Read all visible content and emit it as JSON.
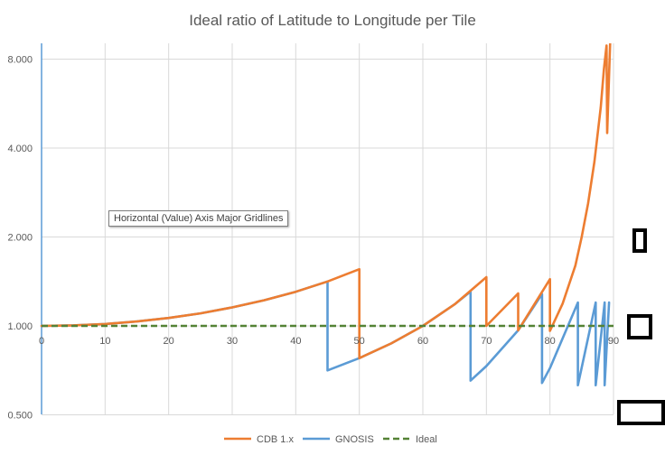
{
  "chart_data": {
    "type": "line",
    "title": "Ideal ratio of Latitude to Longitude per Tile",
    "xlabel": "",
    "ylabel": "",
    "y_scale": "log2",
    "xlim": [
      0,
      90
    ],
    "ylim": [
      0.5,
      8
    ],
    "x_ticks": [
      0,
      10,
      20,
      30,
      40,
      50,
      60,
      70,
      80,
      90
    ],
    "y_ticks": [
      0.5,
      1,
      2,
      4,
      8
    ],
    "y_tick_labels": [
      "0.500",
      "1.000",
      "2.000",
      "4.000",
      "8.000"
    ],
    "grid": {
      "vertical": true,
      "horizontal": true
    },
    "legend_position": "bottom-center",
    "series": [
      {
        "name": "CDB 1.x",
        "color": "#ED7D31",
        "style": "solid",
        "x": [
          0,
          5,
          10,
          15,
          20,
          25,
          30,
          35,
          40,
          45,
          50,
          50,
          55,
          60,
          65,
          70,
          70,
          75,
          75,
          80,
          80,
          82,
          84,
          85,
          86,
          87,
          88,
          88.5,
          88.9,
          89,
          89.5
        ],
        "y": [
          1.0,
          1.004,
          1.015,
          1.035,
          1.064,
          1.103,
          1.155,
          1.221,
          1.305,
          1.414,
          1.556,
          0.778,
          0.872,
          1.0,
          1.183,
          1.462,
          1.0,
          1.288,
          0.966,
          1.44,
          0.962,
          1.19,
          1.6,
          2.0,
          2.6,
          3.6,
          5.5,
          7.4,
          8.9,
          4.5,
          9.5
        ]
      },
      {
        "name": "GNOSIS",
        "color": "#5B9BD5",
        "style": "solid",
        "x": [
          0,
          5,
          10,
          15,
          20,
          25,
          30,
          35,
          40,
          45,
          45,
          50,
          55,
          60,
          65,
          67.5,
          67.5,
          70,
          75,
          78.75,
          78.75,
          80,
          84.4,
          84.4,
          87.2,
          87.2,
          88.6,
          88.6,
          89.3
        ],
        "y": [
          1.0,
          1.004,
          1.015,
          1.035,
          1.064,
          1.103,
          1.155,
          1.221,
          1.305,
          1.414,
          0.707,
          0.778,
          0.872,
          1.0,
          1.183,
          1.307,
          0.653,
          0.731,
          0.966,
          1.282,
          0.641,
          0.72,
          1.2,
          0.63,
          1.2,
          0.63,
          1.2,
          0.63,
          1.2
        ]
      },
      {
        "name": "Ideal",
        "color": "#548235",
        "style": "dashed",
        "x": [
          0,
          90
        ],
        "y": [
          1.0,
          1.0
        ]
      }
    ]
  },
  "tooltip": {
    "text": "Horizontal (Value) Axis Major Gridlines"
  }
}
